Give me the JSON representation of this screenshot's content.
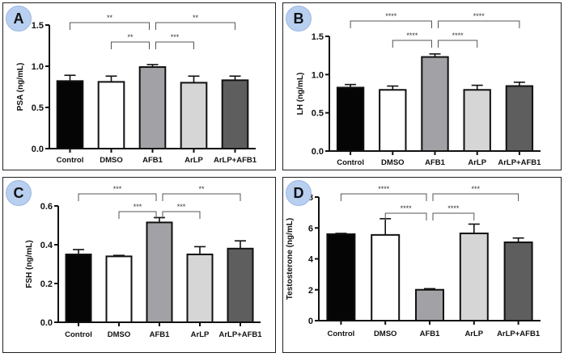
{
  "chart_data": [
    {
      "panel": "A",
      "type": "bar",
      "ylabel": "PSA (ng/mL)",
      "xlabel": "",
      "ylim": [
        0,
        1.5
      ],
      "yticks": [
        "0.0",
        "0.5",
        "1.0",
        "1.5"
      ],
      "ytick_values": [
        0,
        0.5,
        1.0,
        1.5
      ],
      "categories": [
        "Control",
        "DMSO",
        "AFB1",
        "ArLP",
        "ArLP+AFB1"
      ],
      "values": [
        0.82,
        0.81,
        0.99,
        0.8,
        0.83
      ],
      "errors": [
        0.07,
        0.07,
        0.03,
        0.08,
        0.05
      ],
      "significance": [
        {
          "from": 0,
          "to": 2,
          "label": "**",
          "level": 2
        },
        {
          "from": 1,
          "to": 2,
          "label": "**",
          "level": 1
        },
        {
          "from": 2,
          "to": 3,
          "label": "***",
          "level": 1
        },
        {
          "from": 2,
          "to": 4,
          "label": "**",
          "level": 2
        }
      ]
    },
    {
      "panel": "B",
      "type": "bar",
      "ylabel": "LH (ng/mL)",
      "xlabel": "",
      "ylim": [
        0,
        1.5
      ],
      "yticks": [
        "0.0",
        "0.5",
        "1.0",
        "1.5"
      ],
      "ytick_values": [
        0,
        0.5,
        1.0,
        1.5
      ],
      "categories": [
        "Control",
        "DMSO",
        "AFB1",
        "ArLP",
        "ArLP+AFB1"
      ],
      "values": [
        0.83,
        0.8,
        1.23,
        0.8,
        0.85
      ],
      "errors": [
        0.04,
        0.05,
        0.04,
        0.06,
        0.05
      ],
      "significance": [
        {
          "from": 0,
          "to": 2,
          "label": "****",
          "level": 2
        },
        {
          "from": 1,
          "to": 2,
          "label": "****",
          "level": 1
        },
        {
          "from": 2,
          "to": 3,
          "label": "****",
          "level": 1
        },
        {
          "from": 2,
          "to": 4,
          "label": "****",
          "level": 2
        }
      ]
    },
    {
      "panel": "C",
      "type": "bar",
      "ylabel": "FSH (ng/mL)",
      "xlabel": "",
      "ylim": [
        0,
        0.6
      ],
      "yticks": [
        "0.0",
        "0.2",
        "0.4",
        "0.6"
      ],
      "ytick_values": [
        0,
        0.2,
        0.4,
        0.6
      ],
      "categories": [
        "Control",
        "DMSO",
        "AFB1",
        "ArLP",
        "ArLP+AFB1"
      ],
      "values": [
        0.35,
        0.34,
        0.515,
        0.35,
        0.38
      ],
      "errors": [
        0.025,
        0.005,
        0.025,
        0.04,
        0.04
      ],
      "significance": [
        {
          "from": 0,
          "to": 2,
          "label": "***",
          "level": 2
        },
        {
          "from": 1,
          "to": 2,
          "label": "***",
          "level": 1
        },
        {
          "from": 2,
          "to": 3,
          "label": "***",
          "level": 1
        },
        {
          "from": 2,
          "to": 4,
          "label": "**",
          "level": 2
        }
      ]
    },
    {
      "panel": "D",
      "type": "bar",
      "ylabel": "Testosterone (ng/mL)",
      "xlabel": "",
      "ylim": [
        0,
        8
      ],
      "yticks": [
        "0",
        "2",
        "4",
        "6",
        "8"
      ],
      "ytick_values": [
        0,
        2,
        4,
        6,
        8
      ],
      "categories": [
        "Control",
        "DMSO",
        "AFB1",
        "ArLP",
        "ArLP+AFB1"
      ],
      "values": [
        5.6,
        5.55,
        2.0,
        5.65,
        5.07
      ],
      "errors": [
        0.05,
        1.05,
        0.07,
        0.6,
        0.28
      ],
      "significance": [
        {
          "from": 0,
          "to": 2,
          "label": "****",
          "level": 2
        },
        {
          "from": 1,
          "to": 2,
          "label": "****",
          "level": 1
        },
        {
          "from": 2,
          "to": 3,
          "label": "****",
          "level": 1
        },
        {
          "from": 2,
          "to": 4,
          "label": "***",
          "level": 2
        }
      ]
    }
  ],
  "bar_colors": [
    "#050505",
    "#ffffff",
    "#a2a2a6",
    "#d6d6d6",
    "#5e5e5e"
  ],
  "badge_color": "#b8cff0"
}
